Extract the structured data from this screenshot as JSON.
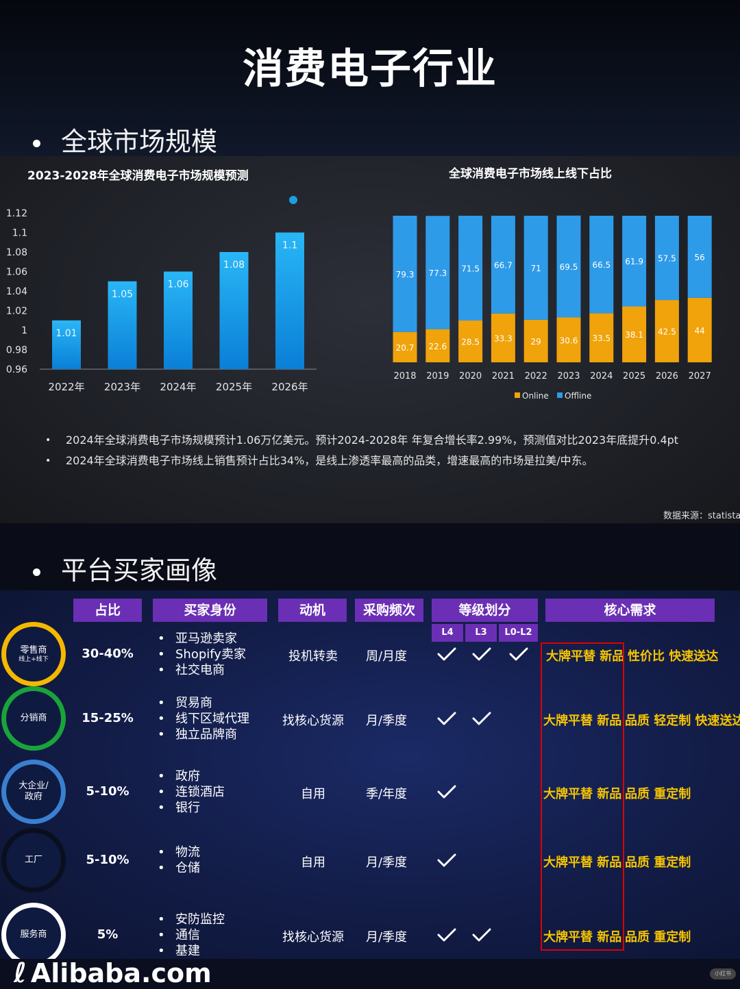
{
  "page_title": "消费电子行业",
  "section1": {
    "heading": "全球市场规模"
  },
  "chart_data": [
    {
      "type": "bar",
      "title": "2023-2028年全球消费电子市场规模预测",
      "categories": [
        "2022年",
        "2023年",
        "2024年",
        "2025年",
        "2026年"
      ],
      "values": [
        1.01,
        1.05,
        1.06,
        1.08,
        1.1
      ],
      "data_labels": [
        "1.01",
        "1.05",
        "1.06",
        "1.08",
        "1.1"
      ],
      "ylim": [
        0.96,
        1.12
      ],
      "yticks": [
        "0.96",
        "0.98",
        "1",
        "1.02",
        "1.04",
        "1.06",
        "1.08",
        "1.1",
        "1.12"
      ],
      "colors": {
        "bar_top": "#29b6f6",
        "bar_bottom": "#0a7fd6"
      }
    },
    {
      "type": "bar",
      "stacked": true,
      "title": "全球消费电子市场线上线下占比",
      "categories": [
        "2018",
        "2019",
        "2020",
        "2021",
        "2022",
        "2023",
        "2024",
        "2025",
        "2026",
        "2027"
      ],
      "series": [
        {
          "name": "Online",
          "values": [
            20.7,
            22.6,
            28.5,
            33.3,
            29,
            30.6,
            33.5,
            38.1,
            42.5,
            44
          ],
          "labels": [
            "20.7",
            "22.6",
            "28.5",
            "33.3",
            "29",
            "30.6",
            "33.5",
            "38.1",
            "42.5",
            "44"
          ],
          "color": "#f0a30a"
        },
        {
          "name": "Offline",
          "values": [
            79.3,
            77.3,
            71.5,
            66.7,
            71,
            69.5,
            66.5,
            61.9,
            57.5,
            56
          ],
          "labels": [
            "79.3",
            "77.3",
            "71.5",
            "66.7",
            "71",
            "69.5",
            "66.5",
            "61.9",
            "57.5",
            "56"
          ],
          "color": "#2e9be8"
        }
      ],
      "ylim": [
        0,
        100
      ],
      "legend": "bottom"
    }
  ],
  "notes": [
    "2024年全球消费电子市场规模预计1.06万亿美元。预计2024-2028年 年复合增长率2.99%，预测值对比2023年底提升0.4pt",
    "2024年全球消费电子市场线上销售预计占比34%，是线上渗透率最高的品类，增速最高的市场是拉美/中东。"
  ],
  "source": "数据来源：statista",
  "section2": {
    "heading": "平台买家画像"
  },
  "table": {
    "headers": [
      "占比",
      "买家身份",
      "动机",
      "采购频次",
      "等级划分",
      "核心需求"
    ],
    "tier_headers": [
      "L4",
      "L3",
      "L0-L2"
    ],
    "rows": [
      {
        "type": "零售商",
        "type_sub": "线上+线下",
        "ring": "#f5b800",
        "share": "30-40%",
        "buyers": [
          "亚马逊卖家",
          "Shopify卖家",
          "社交电商"
        ],
        "motive": "投机转卖",
        "frequency": "周/月度",
        "tiers": [
          true,
          true,
          true
        ],
        "need_a": "大牌平替 新品",
        "need_b": "性价比 快速送达"
      },
      {
        "type": "分销商",
        "type_sub": "",
        "ring": "#19a33a",
        "share": "15-25%",
        "buyers": [
          "贸易商",
          "线下区域代理",
          "独立品牌商"
        ],
        "motive": "找核心货源",
        "frequency": "月/季度",
        "tiers": [
          true,
          true,
          false
        ],
        "need_a": "大牌平替 新品",
        "need_b": "品质 轻定制 快速送达"
      },
      {
        "type": "大企业/",
        "type_sub": "政府",
        "ring": "#3a7fd0",
        "share": "5-10%",
        "buyers": [
          "政府",
          "连锁酒店",
          "银行"
        ],
        "motive": "自用",
        "frequency": "季/年度",
        "tiers": [
          true,
          false,
          false
        ],
        "need_a": "大牌平替 新品",
        "need_b": "品质 重定制"
      },
      {
        "type": "工厂",
        "type_sub": "",
        "ring": "#0a0f1f",
        "share": "5-10%",
        "buyers": [
          "物流",
          "仓储"
        ],
        "motive": "自用",
        "frequency": "月/季度",
        "tiers": [
          true,
          false,
          false
        ],
        "need_a": "大牌平替 新品",
        "need_b": "品质 重定制"
      },
      {
        "type": "服务商",
        "type_sub": "",
        "ring": "#ffffff",
        "share": "5%",
        "buyers": [
          "安防监控",
          "通信",
          "基建"
        ],
        "motive": "找核心货源",
        "frequency": "月/季度",
        "tiers": [
          true,
          true,
          false
        ],
        "need_a": "大牌平替 新品",
        "need_b": "品质 重定制"
      }
    ]
  },
  "footer": {
    "logo": "Alibaba.com",
    "watermark": "小红书"
  }
}
